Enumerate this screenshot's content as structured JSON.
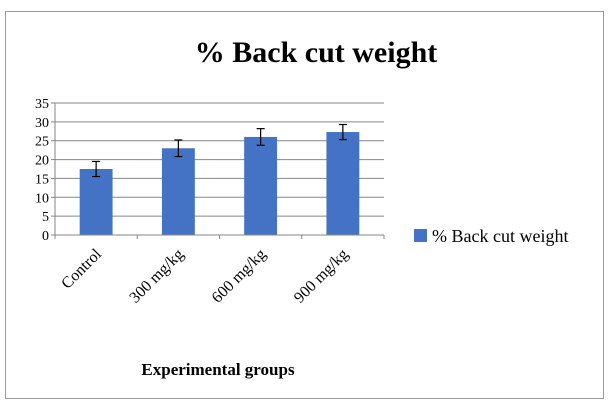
{
  "chart_data": {
    "type": "bar",
    "title": "% Back cut weight",
    "xlabel": "Experimental groups",
    "ylabel": "",
    "categories": [
      "Control",
      "300 mg/kg",
      "600 mg/kg",
      "900 mg/kg"
    ],
    "series": [
      {
        "name": "% Back cut weight",
        "values": [
          17.5,
          23,
          26,
          27.3
        ],
        "errors": [
          2,
          2.2,
          2.2,
          2
        ]
      }
    ],
    "ylim": [
      0,
      35
    ],
    "yticks": [
      "0",
      "5",
      "10",
      "15",
      "20",
      "25",
      "30",
      "35"
    ],
    "grid": true,
    "legend_position": "right",
    "bar_color": "#4472c4"
  }
}
